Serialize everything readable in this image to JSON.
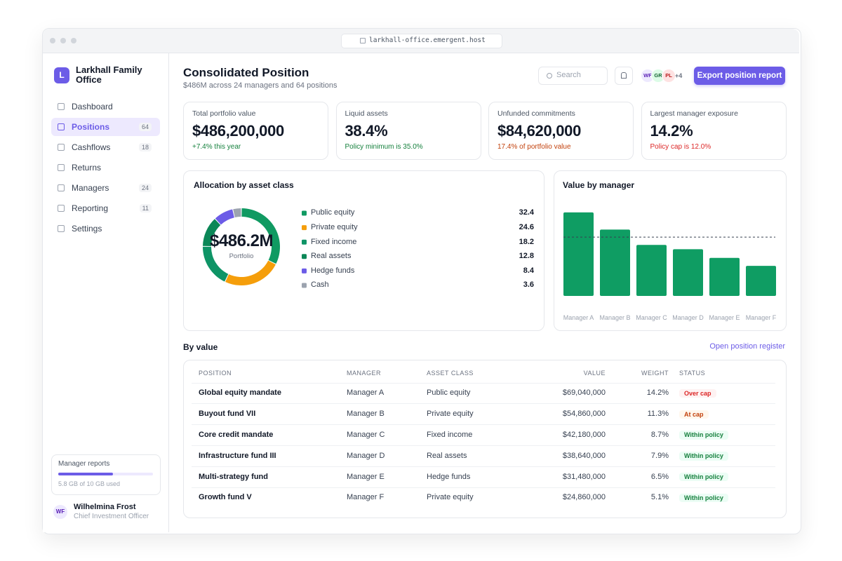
{
  "browser": {
    "url": "larkhall-office.emergent.host"
  },
  "sidebar": {
    "brand_initial": "L",
    "brand": "Larkhall Family Office",
    "nav": [
      {
        "label": "Dashboard"
      },
      {
        "label": "Positions",
        "count": 64,
        "active": true
      },
      {
        "label": "Cashflows",
        "count": 18
      },
      {
        "label": "Returns"
      },
      {
        "label": "Managers",
        "count": 24
      },
      {
        "label": "Reporting",
        "count": 11
      },
      {
        "label": "Settings"
      }
    ],
    "storage": {
      "title": "Manager reports",
      "used": 5.8,
      "capacity": 10,
      "label": "5.8 GB of 10 GB used"
    },
    "user": {
      "initials": "WF",
      "name": "Wilhelmina Frost",
      "role": "Chief Investment Officer"
    }
  },
  "header": {
    "title": "Consolidated Position",
    "subtitle": "$486M across 24 managers and 64 positions",
    "search": "Search",
    "avatars": [
      "WF",
      "GR",
      "PL"
    ],
    "more": "+4",
    "button": "Export position report"
  },
  "kpis": [
    {
      "label": "Total portfolio value",
      "value": "$486,200,000",
      "note": "+7.4% this year",
      "tone": "positive"
    },
    {
      "label": "Liquid assets",
      "value": "38.4%",
      "note": "Policy minimum is 35.0%",
      "tone": "positive"
    },
    {
      "label": "Unfunded commitments",
      "value": "$84,620,000",
      "note": "17.4% of portfolio value",
      "tone": "warning"
    },
    {
      "label": "Largest manager exposure",
      "value": "14.2%",
      "note": "Policy cap is 12.0%",
      "tone": "negative"
    }
  ],
  "allocation": {
    "type": "donut",
    "title": "Allocation by asset class",
    "center_value": "$486.2M",
    "center_label": "Portfolio",
    "categories": [
      "Public equity",
      "Private equity",
      "Fixed income",
      "Real assets",
      "Hedge funds",
      "Cash"
    ],
    "values": [
      32.4,
      24.6,
      18.2,
      12.8,
      8.4,
      3.6
    ],
    "colors": [
      "#109a62",
      "#f59e0b",
      "#0e9466",
      "#0b8757",
      "#6c5ce7",
      "#9ca3af"
    ]
  },
  "managers": {
    "type": "bar",
    "title": "Value by manager",
    "categories": [
      "Manager A",
      "Manager B",
      "Manager C",
      "Manager D",
      "Manager E",
      "Manager F"
    ],
    "values": [
      69.04,
      54.86,
      42.18,
      38.64,
      31.48,
      24.86
    ],
    "color": "#0f9d63",
    "ylim": [
      0,
      80
    ],
    "reference_line": 48.6
  },
  "table": {
    "title": "By value",
    "link": "Open position register",
    "columns": [
      "POSITION",
      "MANAGER",
      "ASSET CLASS",
      "VALUE",
      "WEIGHT",
      "STATUS"
    ],
    "rows": [
      {
        "position": "Global equity mandate",
        "manager": "Manager A",
        "asset_class": "Public equity",
        "value": "$69,040,000",
        "weight": "14.2%",
        "status": "Over cap",
        "tone": "negative"
      },
      {
        "position": "Buyout fund VII",
        "manager": "Manager B",
        "asset_class": "Private equity",
        "value": "$54,860,000",
        "weight": "11.3%",
        "status": "At cap",
        "tone": "warning"
      },
      {
        "position": "Core credit mandate",
        "manager": "Manager C",
        "asset_class": "Fixed income",
        "value": "$42,180,000",
        "weight": "8.7%",
        "status": "Within policy",
        "tone": "positive"
      },
      {
        "position": "Infrastructure fund III",
        "manager": "Manager D",
        "asset_class": "Real assets",
        "value": "$38,640,000",
        "weight": "7.9%",
        "status": "Within policy",
        "tone": "positive"
      },
      {
        "position": "Multi-strategy fund",
        "manager": "Manager E",
        "asset_class": "Hedge funds",
        "value": "$31,480,000",
        "weight": "6.5%",
        "status": "Within policy",
        "tone": "positive"
      },
      {
        "position": "Growth fund V",
        "manager": "Manager F",
        "asset_class": "Private equity",
        "value": "$24,860,000",
        "weight": "5.1%",
        "status": "Within policy",
        "tone": "positive"
      }
    ]
  }
}
